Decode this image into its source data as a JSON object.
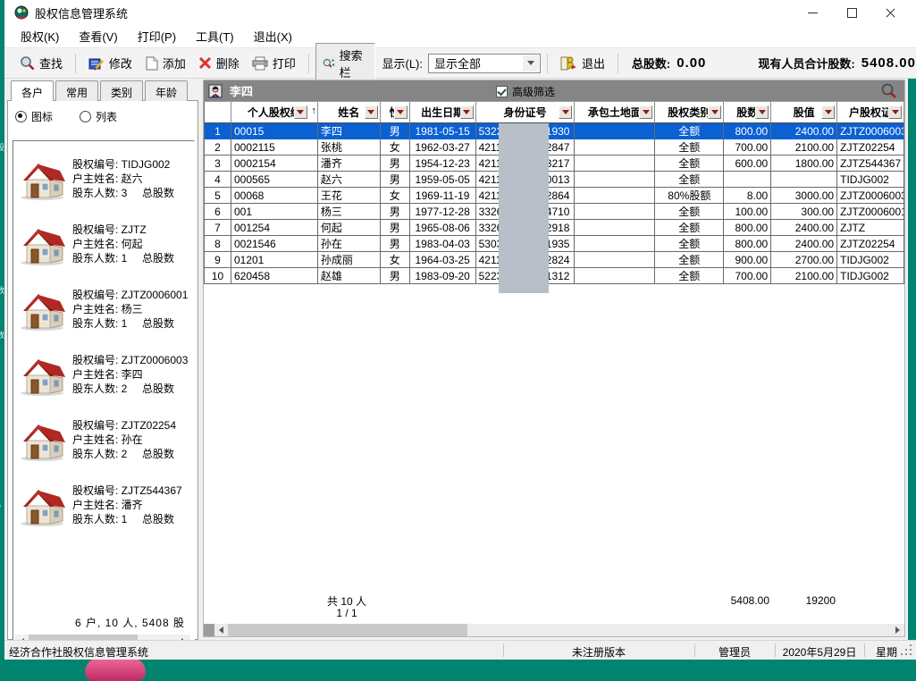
{
  "window": {
    "title": "股权信息管理系统"
  },
  "menu": [
    {
      "name": "menu-equity",
      "label": "股权(K)"
    },
    {
      "name": "menu-view",
      "label": "查看(V)"
    },
    {
      "name": "menu-print",
      "label": "打印(P)"
    },
    {
      "name": "menu-tools",
      "label": "工具(T)"
    },
    {
      "name": "menu-exit",
      "label": "退出(X)"
    }
  ],
  "toolbar": {
    "find": "查找",
    "modify": "修改",
    "add": "添加",
    "delete": "删除",
    "print": "打印",
    "search_bar": "搜索栏",
    "display_label": "显示(L):",
    "display_value": "显示全部",
    "exit": "退出",
    "total_label": "总股数:",
    "total_value": "0.00",
    "persons_total_label": "现有人员合计股数:",
    "persons_total_value": "5408.00"
  },
  "sidebar": {
    "tabs": [
      {
        "name": "tab-households",
        "label": "各户",
        "active": true
      },
      {
        "name": "tab-common",
        "label": "常用",
        "active": false
      },
      {
        "name": "tab-category",
        "label": "类别",
        "active": false
      },
      {
        "name": "tab-age",
        "label": "年龄",
        "active": false
      }
    ],
    "radio_icons": "图标",
    "radio_list": "列表",
    "item_labels": {
      "code": "股权编号:",
      "owner": "户主姓名:",
      "holders": "股东人数:",
      "total_suffix": "总股数"
    },
    "items": [
      {
        "code": "TIDJG002",
        "owner": "赵六",
        "holders": "3"
      },
      {
        "code": "ZJTZ",
        "owner": "何起",
        "holders": "1"
      },
      {
        "code": "ZJTZ0006001",
        "owner": "杨三",
        "holders": "1"
      },
      {
        "code": "ZJTZ0006003",
        "owner": "李四",
        "holders": "2"
      },
      {
        "code": "ZJTZ02254",
        "owner": "孙在",
        "holders": "2"
      },
      {
        "code": "ZJTZ544367",
        "owner": "潘齐",
        "holders": "1"
      }
    ],
    "summary": "6 户, 10 人, 5408 股"
  },
  "panel": {
    "title": "李四",
    "filter_label": "高级筛选",
    "filter_checked": true
  },
  "table": {
    "columns": [
      {
        "label": "",
        "width": 30,
        "align": "c",
        "sort": false
      },
      {
        "label": "个人股权编",
        "width": 97,
        "align": "l",
        "sort": true,
        "sorted": "asc",
        "asc_glyph": "↑"
      },
      {
        "label": "姓名",
        "width": 70,
        "align": "l",
        "sort": true
      },
      {
        "label": "性",
        "width": 33,
        "align": "c",
        "sort": true
      },
      {
        "label": "出生日期",
        "width": 74,
        "align": "c",
        "sort": true
      },
      {
        "label": "身份证号",
        "width": 111,
        "align": "l",
        "sort": true
      },
      {
        "label": "承包土地面",
        "width": 90,
        "align": "l",
        "sort": true
      },
      {
        "label": "股权类别",
        "width": 77,
        "align": "c",
        "sort": true
      },
      {
        "label": "股数",
        "width": 53,
        "align": "r",
        "sort": true
      },
      {
        "label": "股值",
        "width": 74,
        "align": "r",
        "sort": true
      },
      {
        "label": "户股权证",
        "width": 75,
        "align": "l",
        "sort": true
      }
    ],
    "rows": [
      {
        "num": "1",
        "code": "00015",
        "name": "李四",
        "gender": "男",
        "birth": "1981-05-15",
        "id_prefix": "53222",
        "id_suffix": "1930",
        "land": "",
        "type": "全额",
        "shares": "800.00",
        "value": "2400.00",
        "cert": "ZJTZ0006003",
        "selected": true
      },
      {
        "num": "2",
        "code": "0002115",
        "name": "张桃",
        "gender": "女",
        "birth": "1962-03-27",
        "id_prefix": "42112",
        "id_suffix": "2847",
        "land": "",
        "type": "全额",
        "shares": "700.00",
        "value": "2100.00",
        "cert": "ZJTZ02254",
        "selected": false
      },
      {
        "num": "3",
        "code": "0002154",
        "name": "潘齐",
        "gender": "男",
        "birth": "1954-12-23",
        "id_prefix": "42112",
        "id_suffix": "3217",
        "land": "",
        "type": "全额",
        "shares": "600.00",
        "value": "1800.00",
        "cert": "ZJTZ544367",
        "selected": false
      },
      {
        "num": "4",
        "code": "000565",
        "name": "赵六",
        "gender": "男",
        "birth": "1959-05-05",
        "id_prefix": "42112",
        "id_suffix": "0013",
        "land": "",
        "type": "全额",
        "shares": "",
        "value": "",
        "cert": "TIDJG002",
        "selected": false
      },
      {
        "num": "5",
        "code": "00068",
        "name": "王花",
        "gender": "女",
        "birth": "1969-11-19",
        "id_prefix": "42112",
        "id_suffix": "2864",
        "land": "",
        "type": "80%股额",
        "shares": "8.00",
        "value": "3000.00",
        "cert": "ZJTZ0006003",
        "selected": false
      },
      {
        "num": "6",
        "code": "001",
        "name": "杨三",
        "gender": "男",
        "birth": "1977-12-28",
        "id_prefix": "33260",
        "id_suffix": "4710",
        "land": "",
        "type": "全额",
        "shares": "100.00",
        "value": "300.00",
        "cert": "ZJTZ0006001",
        "selected": false
      },
      {
        "num": "7",
        "code": "001254",
        "name": "何起",
        "gender": "男",
        "birth": "1965-08-06",
        "id_prefix": "33262",
        "id_suffix": "2918",
        "land": "",
        "type": "全额",
        "shares": "800.00",
        "value": "2400.00",
        "cert": "ZJTZ",
        "selected": false
      },
      {
        "num": "8",
        "code": "0021546",
        "name": "孙在",
        "gender": "男",
        "birth": "1983-04-03",
        "id_prefix": "53032",
        "id_suffix": "1935",
        "land": "",
        "type": "全额",
        "shares": "800.00",
        "value": "2400.00",
        "cert": "ZJTZ02254",
        "selected": false
      },
      {
        "num": "9",
        "code": "01201",
        "name": "孙成丽",
        "gender": "女",
        "birth": "1964-03-25",
        "id_prefix": "42112",
        "id_suffix": "2824",
        "land": "",
        "type": "全额",
        "shares": "900.00",
        "value": "2700.00",
        "cert": "TIDJG002",
        "selected": false
      },
      {
        "num": "10",
        "code": "620458",
        "name": "赵雄",
        "gender": "男",
        "birth": "1983-09-20",
        "id_prefix": "52232",
        "id_suffix": "1312",
        "land": "",
        "type": "全额",
        "shares": "700.00",
        "value": "2100.00",
        "cert": "TIDJG002",
        "selected": false
      }
    ],
    "footer": {
      "count": "共 10 人",
      "page": "1 / 1",
      "shares_total": "5408.00",
      "value_total": "19200"
    }
  },
  "statusbar": {
    "app": "经济合作社股权信息管理系统",
    "license": "未注册版本",
    "user": "管理员",
    "date": "2020年5月29日",
    "weekday": "星期"
  },
  "desktop_fragments": [
    "股",
    "数",
    "数",
    "s",
    "5"
  ],
  "icons": {
    "app-icon": "application logo",
    "search-icon": "magnifier with red handle",
    "edit-icon": "blue notepad with pen",
    "add-icon": "blank page",
    "delete-icon": "red x",
    "print-icon": "printer",
    "searchbar-icon": "magnifier with arrows",
    "exit-icon": "yellow figure leaving",
    "user-icon": "person",
    "zoom-icon": "magnifier",
    "house-icon": "red-roof house",
    "chevron-down-icon": "▼",
    "sort-filter-icon": "maroon triangle"
  },
  "colors": {
    "desktop": "#00846F",
    "selection": "#0B60D2",
    "panel_header": "#858585",
    "redaction_mask": "#B8BFC8",
    "sort_arrow": "#8B1D1D"
  }
}
